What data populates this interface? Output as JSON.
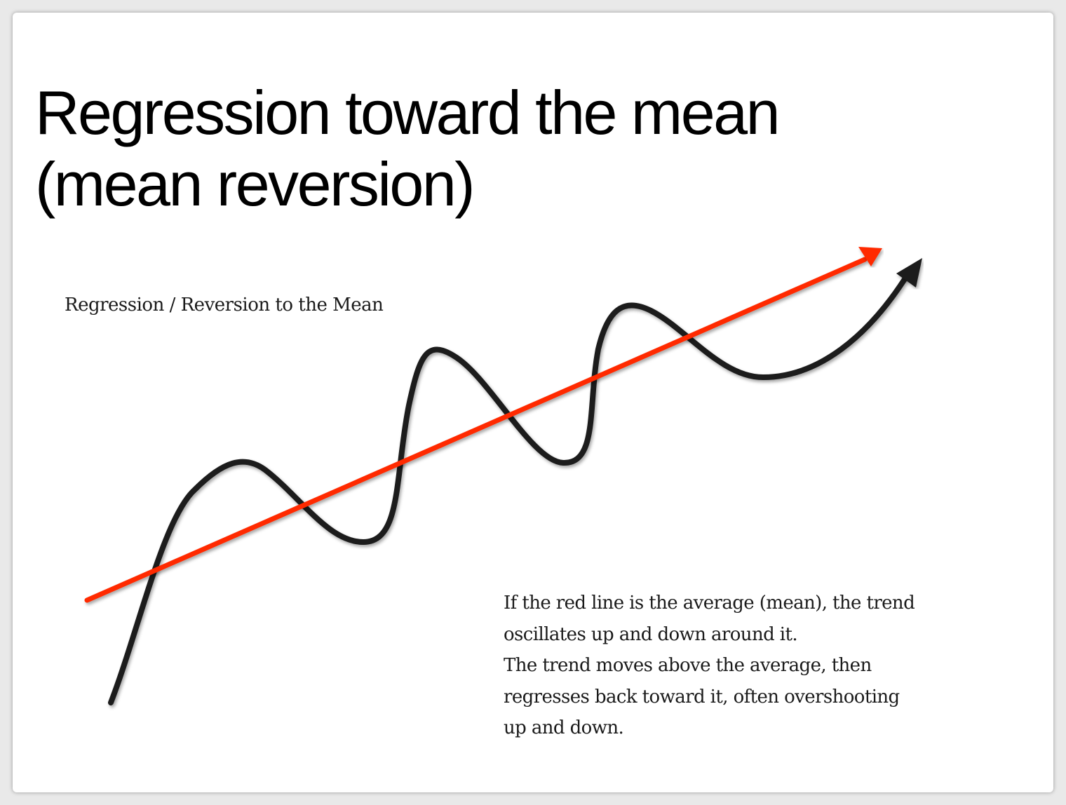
{
  "slide": {
    "title_lines": [
      "Regression toward the mean",
      "(mean reversion)"
    ]
  },
  "figure": {
    "caption": "Regression / Reversion to the Mean",
    "explanation_lines": [
      "If the red line is the average (mean), the trend",
      "oscillates up and down around it.",
      "The trend moves above the average, then",
      "regresses back toward it, often overshooting",
      "up and down."
    ],
    "colors": {
      "mean_line": "#ff2a00",
      "trend_line": "#1a1a1a"
    }
  }
}
